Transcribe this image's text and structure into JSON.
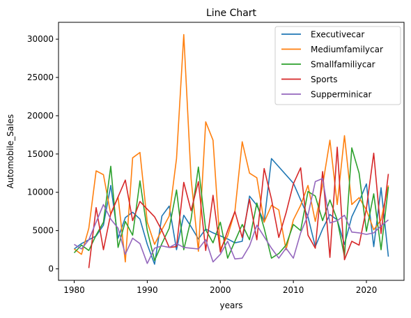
{
  "chart_data": {
    "type": "line",
    "title": "Line Chart",
    "xlabel": "years",
    "ylabel": "Automobile_Sales",
    "xlim": [
      1977.85,
      2025.15
    ],
    "ylim": [
      -1500,
      32200
    ],
    "xticks": [
      1980,
      1990,
      2000,
      2010,
      2020
    ],
    "yticks": [
      0,
      5000,
      10000,
      15000,
      20000,
      25000,
      30000
    ],
    "grid": false,
    "legend_position": "top-right",
    "series": [
      {
        "name": "Executivecar",
        "color": "#1f77b4",
        "points": [
          [
            1980,
            2600
          ],
          [
            1981,
            3300
          ],
          [
            1982,
            3800
          ],
          [
            1983,
            4300
          ],
          [
            1984,
            5700
          ],
          [
            1985,
            10900
          ],
          [
            1986,
            4000
          ],
          [
            1987,
            6700
          ],
          [
            1988,
            7400
          ],
          [
            1989,
            6500
          ],
          [
            1990,
            3200
          ],
          [
            1991,
            600
          ],
          [
            1992,
            6900
          ],
          [
            1993,
            8200
          ],
          [
            1994,
            2500
          ],
          [
            1995,
            7000
          ],
          [
            1996,
            5500
          ],
          [
            1997,
            3900
          ],
          [
            1998,
            5200
          ],
          [
            1999,
            4700
          ],
          [
            2000,
            4300
          ],
          [
            2001,
            3900
          ],
          [
            2002,
            3400
          ],
          [
            2003,
            3600
          ],
          [
            2004,
            9500
          ],
          [
            2005,
            8300
          ],
          [
            2006,
            6100
          ],
          [
            2007,
            14400
          ],
          [
            2010,
            11200
          ],
          [
            2011,
            9000
          ],
          [
            2012,
            6800
          ],
          [
            2013,
            2900
          ],
          [
            2014,
            5200
          ],
          [
            2015,
            7100
          ],
          [
            2016,
            6400
          ],
          [
            2017,
            3200
          ],
          [
            2018,
            6800
          ],
          [
            2019,
            8800
          ],
          [
            2020,
            11100
          ],
          [
            2021,
            2900
          ],
          [
            2022,
            10600
          ],
          [
            2023,
            1600
          ]
        ]
      },
      {
        "name": "Mediumfamilycar",
        "color": "#ff7f0e",
        "points": [
          [
            1980,
            2600
          ],
          [
            1981,
            1900
          ],
          [
            1982,
            5300
          ],
          [
            1983,
            12800
          ],
          [
            1984,
            12300
          ],
          [
            1985,
            7100
          ],
          [
            1986,
            9400
          ],
          [
            1987,
            900
          ],
          [
            1988,
            14500
          ],
          [
            1989,
            15200
          ],
          [
            1990,
            6100
          ],
          [
            1991,
            3200
          ],
          [
            1992,
            5100
          ],
          [
            1993,
            6900
          ],
          [
            1994,
            14400
          ],
          [
            1995,
            30600
          ],
          [
            1996,
            11800
          ],
          [
            1997,
            2300
          ],
          [
            1998,
            19200
          ],
          [
            1999,
            16800
          ],
          [
            2000,
            2600
          ],
          [
            2001,
            4300
          ],
          [
            2002,
            7500
          ],
          [
            2003,
            16600
          ],
          [
            2004,
            12500
          ],
          [
            2005,
            11900
          ],
          [
            2006,
            6100
          ],
          [
            2007,
            8300
          ],
          [
            2008,
            7700
          ],
          [
            2009,
            2500
          ],
          [
            2010,
            6400
          ],
          [
            2011,
            8300
          ],
          [
            2012,
            10900
          ],
          [
            2013,
            6200
          ],
          [
            2014,
            10900
          ],
          [
            2015,
            16800
          ],
          [
            2016,
            8400
          ],
          [
            2017,
            17400
          ],
          [
            2018,
            8400
          ],
          [
            2019,
            9300
          ],
          [
            2020,
            7700
          ],
          [
            2021,
            5100
          ],
          [
            2022,
            6400
          ],
          [
            2023,
            10900
          ]
        ]
      },
      {
        "name": "Smallfamiliycar",
        "color": "#2ca02c",
        "points": [
          [
            1980,
            2100
          ],
          [
            1981,
            3100
          ],
          [
            1982,
            2400
          ],
          [
            1983,
            4400
          ],
          [
            1984,
            6100
          ],
          [
            1985,
            13400
          ],
          [
            1986,
            2800
          ],
          [
            1987,
            6200
          ],
          [
            1988,
            4400
          ],
          [
            1989,
            11500
          ],
          [
            1990,
            5000
          ],
          [
            1991,
            1100
          ],
          [
            1992,
            3300
          ],
          [
            1993,
            5300
          ],
          [
            1994,
            10300
          ],
          [
            1995,
            2500
          ],
          [
            1996,
            6500
          ],
          [
            1997,
            13300
          ],
          [
            1998,
            5100
          ],
          [
            1999,
            3400
          ],
          [
            2000,
            6100
          ],
          [
            2001,
            1400
          ],
          [
            2002,
            3600
          ],
          [
            2003,
            5800
          ],
          [
            2004,
            3800
          ],
          [
            2005,
            8600
          ],
          [
            2006,
            5300
          ],
          [
            2007,
            1400
          ],
          [
            2008,
            2000
          ],
          [
            2009,
            3100
          ],
          [
            2010,
            5800
          ],
          [
            2011,
            5000
          ],
          [
            2012,
            10100
          ],
          [
            2013,
            9500
          ],
          [
            2014,
            6300
          ],
          [
            2015,
            9000
          ],
          [
            2016,
            6400
          ],
          [
            2017,
            1600
          ],
          [
            2018,
            15800
          ],
          [
            2019,
            12500
          ],
          [
            2020,
            4900
          ],
          [
            2021,
            9800
          ],
          [
            2022,
            2500
          ],
          [
            2023,
            10700
          ]
        ]
      },
      {
        "name": "Sports",
        "color": "#d62728",
        "points": [
          [
            1982,
            100
          ],
          [
            1983,
            8000
          ],
          [
            1984,
            2500
          ],
          [
            1985,
            7200
          ],
          [
            1986,
            9400
          ],
          [
            1987,
            11600
          ],
          [
            1988,
            6300
          ],
          [
            1989,
            8800
          ],
          [
            1990,
            7800
          ],
          [
            1991,
            6800
          ],
          [
            1992,
            5000
          ],
          [
            1993,
            2800
          ],
          [
            1994,
            2900
          ],
          [
            1995,
            11300
          ],
          [
            1996,
            7600
          ],
          [
            1997,
            11400
          ],
          [
            1998,
            2400
          ],
          [
            1999,
            9600
          ],
          [
            2000,
            2200
          ],
          [
            2001,
            5000
          ],
          [
            2002,
            7500
          ],
          [
            2003,
            4100
          ],
          [
            2004,
            9100
          ],
          [
            2005,
            3800
          ],
          [
            2006,
            13100
          ],
          [
            2007,
            9100
          ],
          [
            2008,
            4100
          ],
          [
            2009,
            7300
          ],
          [
            2010,
            11100
          ],
          [
            2011,
            13200
          ],
          [
            2012,
            4400
          ],
          [
            2013,
            2700
          ],
          [
            2014,
            12700
          ],
          [
            2015,
            1500
          ],
          [
            2016,
            15900
          ],
          [
            2017,
            1200
          ],
          [
            2018,
            3600
          ],
          [
            2019,
            3100
          ],
          [
            2020,
            7900
          ],
          [
            2021,
            15100
          ],
          [
            2022,
            4600
          ],
          [
            2023,
            12400
          ]
        ]
      },
      {
        "name": "Supperminicar",
        "color": "#9467bd",
        "points": [
          [
            1980,
            3200
          ],
          [
            1981,
            2600
          ],
          [
            1982,
            3800
          ],
          [
            1983,
            6100
          ],
          [
            1984,
            8400
          ],
          [
            1985,
            6500
          ],
          [
            1986,
            5300
          ],
          [
            1987,
            1900
          ],
          [
            1988,
            4000
          ],
          [
            1989,
            3300
          ],
          [
            1990,
            700
          ],
          [
            1991,
            2700
          ],
          [
            1992,
            3000
          ],
          [
            1993,
            2800
          ],
          [
            1994,
            3300
          ],
          [
            1995,
            2800
          ],
          [
            1996,
            2700
          ],
          [
            1997,
            2600
          ],
          [
            1998,
            3800
          ],
          [
            1999,
            900
          ],
          [
            2000,
            1900
          ],
          [
            2001,
            3600
          ],
          [
            2002,
            1300
          ],
          [
            2003,
            1400
          ],
          [
            2004,
            3000
          ],
          [
            2005,
            5700
          ],
          [
            2006,
            4200
          ],
          [
            2007,
            2700
          ],
          [
            2008,
            1400
          ],
          [
            2009,
            2700
          ],
          [
            2010,
            1400
          ],
          [
            2011,
            4700
          ],
          [
            2012,
            7000
          ],
          [
            2013,
            11400
          ],
          [
            2014,
            11800
          ],
          [
            2015,
            6000
          ],
          [
            2016,
            6300
          ],
          [
            2017,
            7000
          ],
          [
            2018,
            4800
          ],
          [
            2019,
            4700
          ],
          [
            2020,
            4500
          ],
          [
            2021,
            4700
          ],
          [
            2022,
            5600
          ],
          [
            2023,
            6400
          ]
        ]
      }
    ]
  }
}
